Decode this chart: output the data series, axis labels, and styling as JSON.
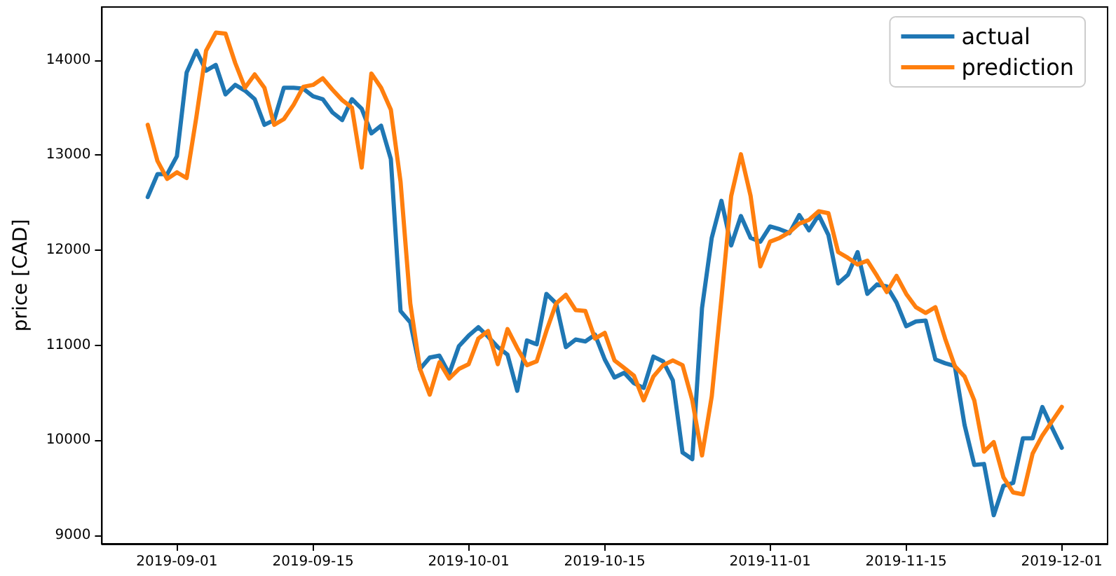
{
  "chart_data": {
    "type": "line",
    "ylabel": "price [CAD]",
    "x": [
      "2019-08-29",
      "2019-08-30",
      "2019-08-31",
      "2019-09-01",
      "2019-09-02",
      "2019-09-03",
      "2019-09-04",
      "2019-09-05",
      "2019-09-06",
      "2019-09-07",
      "2019-09-08",
      "2019-09-09",
      "2019-09-10",
      "2019-09-11",
      "2019-09-12",
      "2019-09-13",
      "2019-09-14",
      "2019-09-15",
      "2019-09-16",
      "2019-09-17",
      "2019-09-18",
      "2019-09-19",
      "2019-09-20",
      "2019-09-21",
      "2019-09-22",
      "2019-09-23",
      "2019-09-24",
      "2019-09-25",
      "2019-09-26",
      "2019-09-27",
      "2019-09-28",
      "2019-09-29",
      "2019-09-30",
      "2019-10-01",
      "2019-10-02",
      "2019-10-03",
      "2019-10-04",
      "2019-10-05",
      "2019-10-06",
      "2019-10-07",
      "2019-10-08",
      "2019-10-09",
      "2019-10-10",
      "2019-10-11",
      "2019-10-12",
      "2019-10-13",
      "2019-10-14",
      "2019-10-15",
      "2019-10-16",
      "2019-10-17",
      "2019-10-18",
      "2019-10-19",
      "2019-10-20",
      "2019-10-21",
      "2019-10-22",
      "2019-10-23",
      "2019-10-24",
      "2019-10-25",
      "2019-10-26",
      "2019-10-27",
      "2019-10-28",
      "2019-10-29",
      "2019-10-30",
      "2019-10-31",
      "2019-11-01",
      "2019-11-02",
      "2019-11-03",
      "2019-11-04",
      "2019-11-05",
      "2019-11-06",
      "2019-11-07",
      "2019-11-08",
      "2019-11-09",
      "2019-11-10",
      "2019-11-11",
      "2019-11-12",
      "2019-11-13",
      "2019-11-14",
      "2019-11-15",
      "2019-11-16",
      "2019-11-17",
      "2019-11-18",
      "2019-11-19",
      "2019-11-20",
      "2019-11-21",
      "2019-11-22",
      "2019-11-23",
      "2019-11-24",
      "2019-11-25",
      "2019-11-26",
      "2019-11-27",
      "2019-11-28",
      "2019-11-29",
      "2019-11-30",
      "2019-12-01"
    ],
    "series": [
      {
        "name": "actual",
        "color": "#1f77b4",
        "values": [
          12560,
          12800,
          12800,
          12990,
          13870,
          14100,
          13890,
          13950,
          13640,
          13740,
          13680,
          13590,
          13320,
          13370,
          13710,
          13710,
          13700,
          13620,
          13590,
          13450,
          13370,
          13590,
          13490,
          13230,
          13310,
          12960,
          11360,
          11240,
          10750,
          10870,
          10890,
          10700,
          10990,
          11100,
          11190,
          11090,
          10980,
          10900,
          10520,
          11050,
          11010,
          11540,
          11440,
          10980,
          11060,
          11040,
          11110,
          10850,
          10660,
          10710,
          10600,
          10550,
          10880,
          10830,
          10630,
          9870,
          9800,
          11390,
          12130,
          12520,
          12050,
          12360,
          12130,
          12090,
          12250,
          12220,
          12180,
          12370,
          12210,
          12370,
          12160,
          11650,
          11740,
          11980,
          11540,
          11640,
          11620,
          11450,
          11200,
          11250,
          11260,
          10850,
          10810,
          10780,
          10160,
          9740,
          9750,
          9210,
          9520,
          9550,
          10020,
          10020,
          10350,
          10130,
          9920
        ]
      },
      {
        "name": "prediction",
        "color": "#ff7f0e",
        "values": [
          13320,
          12940,
          12750,
          12820,
          12760,
          13400,
          14100,
          14290,
          14280,
          13970,
          13710,
          13850,
          13710,
          13320,
          13380,
          13530,
          13720,
          13740,
          13810,
          13690,
          13580,
          13500,
          12870,
          13860,
          13710,
          13480,
          12720,
          11440,
          10750,
          10480,
          10820,
          10650,
          10750,
          10800,
          11070,
          11150,
          10800,
          11170,
          10970,
          10790,
          10830,
          11150,
          11440,
          11530,
          11370,
          11360,
          11070,
          11130,
          10840,
          10760,
          10680,
          10420,
          10670,
          10790,
          10840,
          10790,
          10420,
          9840,
          10460,
          11490,
          12570,
          13010,
          12570,
          11830,
          12090,
          12130,
          12190,
          12280,
          12320,
          12410,
          12390,
          11980,
          11920,
          11850,
          11890,
          11730,
          11560,
          11730,
          11540,
          11400,
          11340,
          11400,
          11070,
          10780,
          10670,
          10420,
          9880,
          9980,
          9610,
          9450,
          9430,
          9860,
          10050,
          10200,
          10350
        ]
      }
    ],
    "xlim": [
      "2019-08-24T07:00",
      "2019-12-05T17:00"
    ],
    "xticks": [
      "2019-09-01",
      "2019-09-15",
      "2019-10-01",
      "2019-10-15",
      "2019-11-01",
      "2019-11-15",
      "2019-12-01"
    ],
    "ylim": [
      8910,
      14560
    ],
    "yticks": [
      9000,
      10000,
      11000,
      12000,
      13000,
      14000
    ],
    "grid": false,
    "legend": "top right",
    "marker": "none",
    "line_style": "solid"
  }
}
